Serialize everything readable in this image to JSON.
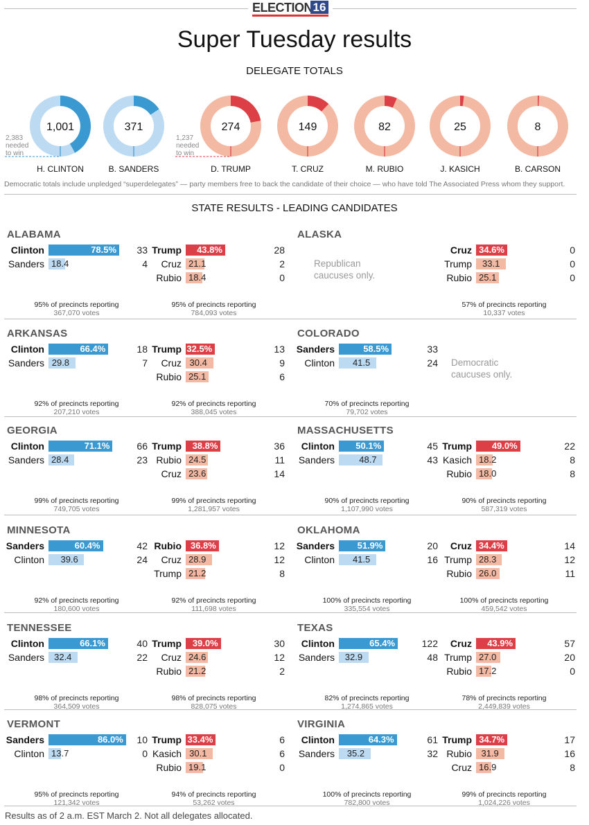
{
  "logo": {
    "text": "ELECTION",
    "num": "16"
  },
  "title": "Super Tuesday results",
  "delegate_heading": "DELEGATE TOTALS",
  "donuts": [
    {
      "name": "H. CLINTON",
      "value": 1001,
      "label": "1,001",
      "party": "dem",
      "needed": 2383,
      "needed_label": [
        "2,383",
        "needed",
        "to win"
      ]
    },
    {
      "name": "B. SANDERS",
      "value": 371,
      "label": "371",
      "party": "dem",
      "needed": 2383
    },
    {
      "name": "D. TRUMP",
      "value": 274,
      "label": "274",
      "party": "rep",
      "needed": 1237,
      "needed_label": [
        "1,237",
        "needed",
        "to win"
      ]
    },
    {
      "name": "T. CRUZ",
      "value": 149,
      "label": "149",
      "party": "rep",
      "needed": 1237
    },
    {
      "name": "M. RUBIO",
      "value": 82,
      "label": "82",
      "party": "rep",
      "needed": 1237
    },
    {
      "name": "J. KASICH",
      "value": 25,
      "label": "25",
      "party": "rep",
      "needed": 1237
    },
    {
      "name": "B. CARSON",
      "value": 8,
      "label": "8",
      "party": "rep",
      "needed": 1237
    }
  ],
  "note": "Democratic totals include unpledged “superdelegates” — party members free to back the candidate of their choice — who have told The Associated Press whom they support.",
  "state_heading": "STATE RESULTS - LEADING CANDIDATES",
  "footer": "Results as of 2 a.m. EST March 2. Not all delegates allocated.",
  "colors": {
    "dem_lead": "#3a99d0",
    "dem": "#bcdaf2",
    "rep_lead": "#dc3f45",
    "rep": "#f3b9a2"
  },
  "chart_data": {
    "type": "bar",
    "states": [
      {
        "name": "ALABAMA",
        "dem": {
          "candidates": [
            {
              "name": "Clinton",
              "pct": 78.5,
              "label": "78.5%",
              "delegates": "33"
            },
            {
              "name": "Sanders",
              "pct": 18.4,
              "label": "18.4",
              "delegates": "4"
            }
          ],
          "precincts": "95% of precincts reporting",
          "votes": "367,070 votes"
        },
        "rep": {
          "candidates": [
            {
              "name": "Trump",
              "pct": 43.8,
              "label": "43.8%",
              "delegates": "28"
            },
            {
              "name": "Cruz",
              "pct": 21.1,
              "label": "21.1",
              "delegates": "2"
            },
            {
              "name": "Rubio",
              "pct": 18.4,
              "label": "18.4",
              "delegates": "0"
            }
          ],
          "precincts": "95% of precincts reporting",
          "votes": "784,093 votes"
        }
      },
      {
        "name": "ALASKA",
        "dem": {
          "message": [
            "Republican",
            "caucuses only."
          ]
        },
        "rep": {
          "candidates": [
            {
              "name": "Cruz",
              "pct": 34.6,
              "label": "34.6%",
              "delegates": "0"
            },
            {
              "name": "Trump",
              "pct": 33.1,
              "label": "33.1",
              "delegates": "0"
            },
            {
              "name": "Rubio",
              "pct": 25.1,
              "label": "25.1",
              "delegates": "0"
            }
          ],
          "precincts": "57% of precincts reporting",
          "votes": "10,337 votes"
        }
      },
      {
        "name": "ARKANSAS",
        "dem": {
          "candidates": [
            {
              "name": "Clinton",
              "pct": 66.4,
              "label": "66.4%",
              "delegates": "18"
            },
            {
              "name": "Sanders",
              "pct": 29.8,
              "label": "29.8",
              "delegates": "7"
            }
          ],
          "precincts": "92% of precincts reporting",
          "votes": "207,210 votes"
        },
        "rep": {
          "candidates": [
            {
              "name": "Trump",
              "pct": 32.5,
              "label": "32.5%",
              "delegates": "13"
            },
            {
              "name": "Cruz",
              "pct": 30.4,
              "label": "30.4",
              "delegates": "9"
            },
            {
              "name": "Rubio",
              "pct": 25.1,
              "label": "25.1",
              "delegates": "6"
            }
          ],
          "precincts": "92% of precincts reporting",
          "votes": "388,045 votes"
        }
      },
      {
        "name": "COLORADO",
        "dem": {
          "candidates": [
            {
              "name": "Sanders",
              "pct": 58.5,
              "label": "58.5%",
              "delegates": "33"
            },
            {
              "name": "Clinton",
              "pct": 41.5,
              "label": "41.5",
              "delegates": "24"
            }
          ],
          "precincts": "70% of precincts reporting",
          "votes": "79,702 votes"
        },
        "rep": {
          "message": [
            "Democratic",
            "caucuses only."
          ]
        }
      },
      {
        "name": "GEORGIA",
        "dem": {
          "candidates": [
            {
              "name": "Clinton",
              "pct": 71.1,
              "label": "71.1%",
              "delegates": "66"
            },
            {
              "name": "Sanders",
              "pct": 28.4,
              "label": "28.4",
              "delegates": "23"
            }
          ],
          "precincts": "99% of precincts reporting",
          "votes": "749,705 votes"
        },
        "rep": {
          "candidates": [
            {
              "name": "Trump",
              "pct": 38.8,
              "label": "38.8%",
              "delegates": "36"
            },
            {
              "name": "Rubio",
              "pct": 24.5,
              "label": "24.5",
              "delegates": "11"
            },
            {
              "name": "Cruz",
              "pct": 23.6,
              "label": "23.6",
              "delegates": "14"
            }
          ],
          "precincts": "99% of precincts reporting",
          "votes": "1,281,957 votes"
        }
      },
      {
        "name": "MASSACHUSETTS",
        "dem": {
          "candidates": [
            {
              "name": "Clinton",
              "pct": 50.1,
              "label": "50.1%",
              "delegates": "45"
            },
            {
              "name": "Sanders",
              "pct": 48.7,
              "label": "48.7",
              "delegates": "43"
            }
          ],
          "precincts": "90% of precincts reporting",
          "votes": "1,107,990 votes"
        },
        "rep": {
          "candidates": [
            {
              "name": "Trump",
              "pct": 49.0,
              "label": "49.0%",
              "delegates": "22"
            },
            {
              "name": "Kasich",
              "pct": 18.2,
              "label": "18.2",
              "delegates": "8"
            },
            {
              "name": "Rubio",
              "pct": 18.0,
              "label": "18.0",
              "delegates": "8"
            }
          ],
          "precincts": "90% of precincts reporting",
          "votes": "587,319 votes"
        }
      },
      {
        "name": "MINNESOTA",
        "dem": {
          "candidates": [
            {
              "name": "Sanders",
              "pct": 60.4,
              "label": "60.4%",
              "delegates": "42"
            },
            {
              "name": "Clinton",
              "pct": 39.6,
              "label": "39.6",
              "delegates": "24"
            }
          ],
          "precincts": "92% of precincts reporting",
          "votes": "180,600 votes"
        },
        "rep": {
          "candidates": [
            {
              "name": "Rubio",
              "pct": 36.8,
              "label": "36.8%",
              "delegates": "12"
            },
            {
              "name": "Cruz",
              "pct": 28.9,
              "label": "28.9",
              "delegates": "12"
            },
            {
              "name": "Trump",
              "pct": 21.2,
              "label": "21.2",
              "delegates": "8"
            }
          ],
          "precincts": "92% of precincts reporting",
          "votes": "111,698 votes"
        }
      },
      {
        "name": "OKLAHOMA",
        "dem": {
          "candidates": [
            {
              "name": "Sanders",
              "pct": 51.9,
              "label": "51.9%",
              "delegates": "20"
            },
            {
              "name": "Clinton",
              "pct": 41.5,
              "label": "41.5",
              "delegates": "16"
            }
          ],
          "precincts": "100% of precincts reporting",
          "votes": "335,554 votes"
        },
        "rep": {
          "candidates": [
            {
              "name": "Cruz",
              "pct": 34.4,
              "label": "34.4%",
              "delegates": "14"
            },
            {
              "name": "Trump",
              "pct": 28.3,
              "label": "28.3",
              "delegates": "12"
            },
            {
              "name": "Rubio",
              "pct": 26.0,
              "label": "26.0",
              "delegates": "11"
            }
          ],
          "precincts": "100% of precincts reporting",
          "votes": "459,542 votes"
        }
      },
      {
        "name": "TENNESSEE",
        "dem": {
          "candidates": [
            {
              "name": "Clinton",
              "pct": 66.1,
              "label": "66.1%",
              "delegates": "40"
            },
            {
              "name": "Sanders",
              "pct": 32.4,
              "label": "32.4",
              "delegates": "22"
            }
          ],
          "precincts": "98% of precincts reporting",
          "votes": "364,509 votes"
        },
        "rep": {
          "candidates": [
            {
              "name": "Trump",
              "pct": 39.0,
              "label": "39.0%",
              "delegates": "30"
            },
            {
              "name": "Cruz",
              "pct": 24.6,
              "label": "24.6",
              "delegates": "12"
            },
            {
              "name": "Rubio",
              "pct": 21.2,
              "label": "21.2",
              "delegates": "2"
            }
          ],
          "precincts": "98% of precincts reporting",
          "votes": "828,075 votes"
        }
      },
      {
        "name": "TEXAS",
        "dem": {
          "candidates": [
            {
              "name": "Clinton",
              "pct": 65.4,
              "label": "65.4%",
              "delegates": "122"
            },
            {
              "name": "Sanders",
              "pct": 32.9,
              "label": "32.9",
              "delegates": "48"
            }
          ],
          "precincts": "82% of precincts reporting",
          "votes": "1,274,865 votes"
        },
        "rep": {
          "candidates": [
            {
              "name": "Cruz",
              "pct": 43.9,
              "label": "43.9%",
              "delegates": "57"
            },
            {
              "name": "Trump",
              "pct": 27.0,
              "label": "27.0",
              "delegates": "20"
            },
            {
              "name": "Rubio",
              "pct": 17.2,
              "label": "17.2",
              "delegates": "0"
            }
          ],
          "precincts": "78% of precincts reporting",
          "votes": "2,449,839 votes"
        }
      },
      {
        "name": "VERMONT",
        "dem": {
          "candidates": [
            {
              "name": "Sanders",
              "pct": 86.0,
              "label": "86.0%",
              "delegates": "10"
            },
            {
              "name": "Clinton",
              "pct": 13.7,
              "label": "13.7",
              "delegates": "0"
            }
          ],
          "precincts": "95% of precincts reporting",
          "votes": "121,342 votes"
        },
        "rep": {
          "candidates": [
            {
              "name": "Trump",
              "pct": 33.4,
              "label": "33.4%",
              "delegates": "6"
            },
            {
              "name": "Kasich",
              "pct": 30.1,
              "label": "30.1",
              "delegates": "6"
            },
            {
              "name": "Rubio",
              "pct": 19.1,
              "label": "19.1",
              "delegates": "0"
            }
          ],
          "precincts": "94% of precincts reporting",
          "votes": "53,262 votes"
        }
      },
      {
        "name": "VIRGINIA",
        "dem": {
          "candidates": [
            {
              "name": "Clinton",
              "pct": 64.3,
              "label": "64.3%",
              "delegates": "61"
            },
            {
              "name": "Sanders",
              "pct": 35.2,
              "label": "35.2",
              "delegates": "32"
            }
          ],
          "precincts": "100% of precincts reporting",
          "votes": "782,800 votes"
        },
        "rep": {
          "candidates": [
            {
              "name": "Trump",
              "pct": 34.7,
              "label": "34.7%",
              "delegates": "17"
            },
            {
              "name": "Rubio",
              "pct": 31.9,
              "label": "31.9",
              "delegates": "16"
            },
            {
              "name": "Cruz",
              "pct": 16.9,
              "label": "16.9",
              "delegates": "8"
            }
          ],
          "precincts": "99% of precincts reporting",
          "votes": "1,024,226 votes"
        }
      }
    ]
  }
}
